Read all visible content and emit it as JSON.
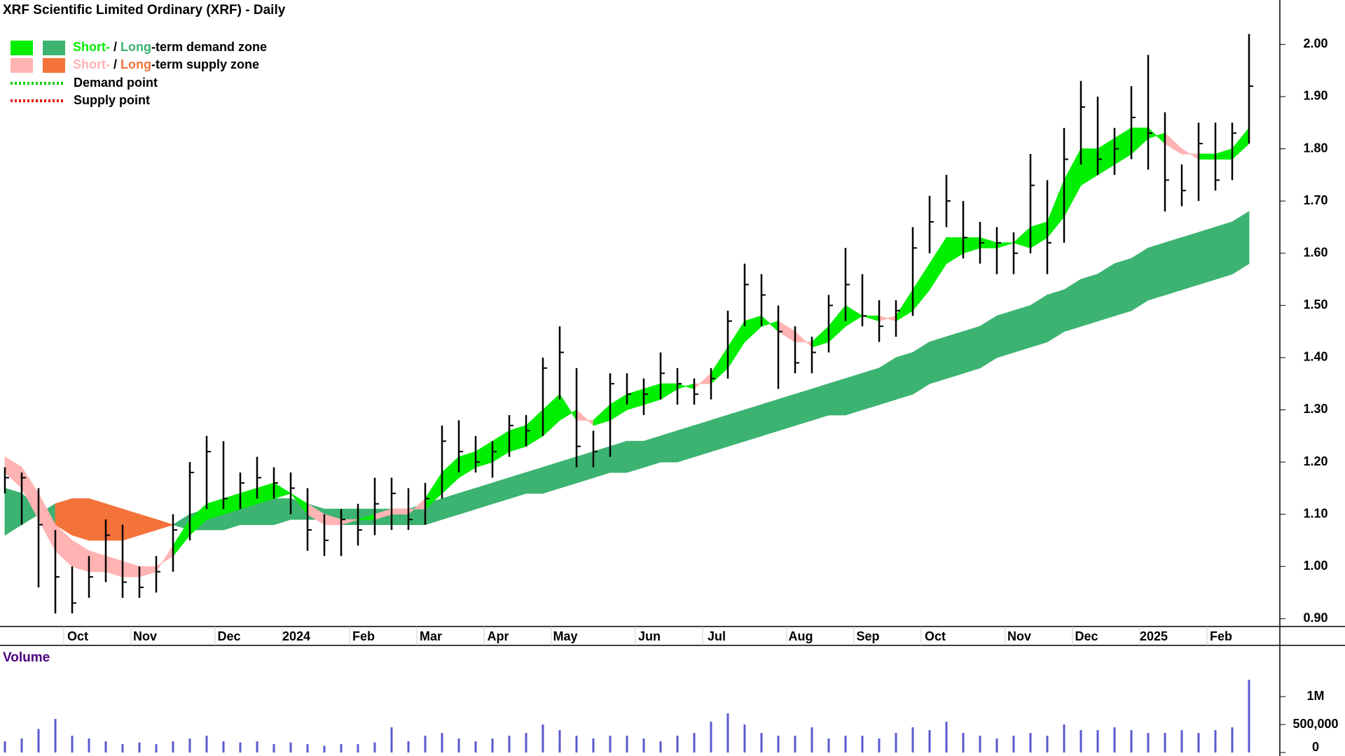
{
  "chart_data": [
    {
      "type": "hlc",
      "title": "XRF Scientific Limited Ordinary (XRF) - Daily",
      "categories": [
        null,
        null,
        null,
        null,
        "Oct",
        null,
        null,
        null,
        "Nov",
        null,
        null,
        null,
        null,
        "Dec",
        null,
        null,
        null,
        "2024",
        null,
        null,
        null,
        "Feb",
        null,
        null,
        null,
        "Mar",
        null,
        null,
        null,
        "Apr",
        null,
        null,
        null,
        "May",
        null,
        null,
        null,
        null,
        "Jun",
        null,
        null,
        null,
        "Jul",
        null,
        null,
        null,
        null,
        "Aug",
        null,
        null,
        null,
        "Sep",
        null,
        null,
        null,
        "Oct",
        null,
        null,
        null,
        null,
        "Nov",
        null,
        null,
        null,
        "Dec",
        null,
        null,
        null,
        "2025",
        null,
        null,
        null,
        "Feb",
        null,
        null
      ],
      "high": [
        1.19,
        1.18,
        1.15,
        1.07,
        1.0,
        1.02,
        1.09,
        1.08,
        1.0,
        1.02,
        1.1,
        1.2,
        1.25,
        1.24,
        1.18,
        1.21,
        1.19,
        1.18,
        1.15,
        1.1,
        1.11,
        1.12,
        1.17,
        1.17,
        1.15,
        1.16,
        1.27,
        1.28,
        1.25,
        1.24,
        1.29,
        1.29,
        1.4,
        1.46,
        1.38,
        1.26,
        1.37,
        1.37,
        1.36,
        1.41,
        1.38,
        1.36,
        1.38,
        1.49,
        1.58,
        1.56,
        1.5,
        1.46,
        1.44,
        1.52,
        1.61,
        1.56,
        1.51,
        1.51,
        1.65,
        1.71,
        1.75,
        1.7,
        1.66,
        1.65,
        1.64,
        1.79,
        1.74,
        1.84,
        1.93,
        1.9,
        1.84,
        1.92,
        1.98,
        1.87,
        1.77,
        1.85,
        1.85,
        1.85,
        2.02
      ],
      "low": [
        1.14,
        1.08,
        0.96,
        0.91,
        0.91,
        0.94,
        0.97,
        0.94,
        0.94,
        0.95,
        0.99,
        1.05,
        1.11,
        1.11,
        1.11,
        1.13,
        1.13,
        1.1,
        1.03,
        1.02,
        1.02,
        1.04,
        1.06,
        1.07,
        1.07,
        1.08,
        1.13,
        1.18,
        1.18,
        1.17,
        1.21,
        1.23,
        1.25,
        1.32,
        1.19,
        1.19,
        1.21,
        1.31,
        1.29,
        1.32,
        1.31,
        1.31,
        1.32,
        1.36,
        1.46,
        1.46,
        1.34,
        1.37,
        1.37,
        1.41,
        1.47,
        1.46,
        1.43,
        1.44,
        1.48,
        1.6,
        1.65,
        1.59,
        1.58,
        1.56,
        1.56,
        1.6,
        1.56,
        1.62,
        1.77,
        1.75,
        1.75,
        1.78,
        1.76,
        1.68,
        1.69,
        1.7,
        1.72,
        1.74,
        1.81
      ],
      "close": [
        1.17,
        1.17,
        1.08,
        0.98,
        0.93,
        0.98,
        1.06,
        0.97,
        0.96,
        0.99,
        1.07,
        1.18,
        1.22,
        1.13,
        1.16,
        1.17,
        1.16,
        1.15,
        1.07,
        1.05,
        1.09,
        1.07,
        1.12,
        1.14,
        1.09,
        1.13,
        1.24,
        1.22,
        1.2,
        1.22,
        1.27,
        1.26,
        1.38,
        1.41,
        1.23,
        1.22,
        1.35,
        1.33,
        1.33,
        1.37,
        1.35,
        1.33,
        1.36,
        1.47,
        1.54,
        1.52,
        1.45,
        1.39,
        1.41,
        1.5,
        1.54,
        1.48,
        1.46,
        1.49,
        1.61,
        1.66,
        1.7,
        1.63,
        1.62,
        1.62,
        1.6,
        1.73,
        1.62,
        1.78,
        1.88,
        1.78,
        1.8,
        1.86,
        1.83,
        1.74,
        1.72,
        1.81,
        1.74,
        1.83,
        1.92
      ],
      "zones": {
        "long_fast": [
          1.15,
          1.14,
          1.11,
          1.08,
          1.06,
          1.05,
          1.05,
          1.05,
          1.06,
          1.07,
          1.08,
          1.1,
          1.11,
          1.11,
          1.12,
          1.12,
          1.13,
          1.13,
          1.12,
          1.11,
          1.11,
          1.11,
          1.11,
          1.11,
          1.11,
          1.12,
          1.13,
          1.14,
          1.15,
          1.16,
          1.17,
          1.18,
          1.19,
          1.2,
          1.21,
          1.22,
          1.23,
          1.24,
          1.24,
          1.25,
          1.26,
          1.27,
          1.28,
          1.29,
          1.3,
          1.31,
          1.32,
          1.33,
          1.34,
          1.35,
          1.36,
          1.37,
          1.38,
          1.4,
          1.41,
          1.43,
          1.44,
          1.45,
          1.46,
          1.48,
          1.49,
          1.5,
          1.52,
          1.53,
          1.55,
          1.56,
          1.58,
          1.59,
          1.61,
          1.62,
          1.63,
          1.64,
          1.65,
          1.66,
          1.68
        ],
        "long_slow": [
          1.06,
          1.08,
          1.1,
          1.12,
          1.13,
          1.13,
          1.12,
          1.11,
          1.1,
          1.09,
          1.08,
          1.07,
          1.07,
          1.07,
          1.08,
          1.08,
          1.08,
          1.09,
          1.09,
          1.09,
          1.08,
          1.08,
          1.08,
          1.08,
          1.08,
          1.08,
          1.09,
          1.1,
          1.11,
          1.12,
          1.13,
          1.14,
          1.14,
          1.15,
          1.16,
          1.17,
          1.18,
          1.18,
          1.19,
          1.2,
          1.2,
          1.21,
          1.22,
          1.23,
          1.24,
          1.25,
          1.26,
          1.27,
          1.28,
          1.29,
          1.29,
          1.3,
          1.31,
          1.32,
          1.33,
          1.35,
          1.36,
          1.37,
          1.38,
          1.4,
          1.41,
          1.42,
          1.43,
          1.45,
          1.46,
          1.47,
          1.48,
          1.49,
          1.51,
          1.52,
          1.53,
          1.54,
          1.55,
          1.56,
          1.58
        ],
        "short_fast": [
          1.18,
          1.15,
          1.09,
          1.03,
          1.0,
          0.99,
          0.99,
          0.98,
          0.98,
          0.99,
          1.04,
          1.09,
          1.12,
          1.13,
          1.14,
          1.15,
          1.16,
          1.14,
          1.1,
          1.08,
          1.08,
          1.09,
          1.09,
          1.1,
          1.1,
          1.13,
          1.18,
          1.21,
          1.22,
          1.24,
          1.26,
          1.27,
          1.3,
          1.33,
          1.28,
          1.28,
          1.31,
          1.33,
          1.34,
          1.35,
          1.35,
          1.34,
          1.37,
          1.42,
          1.47,
          1.48,
          1.45,
          1.43,
          1.43,
          1.46,
          1.5,
          1.48,
          1.47,
          1.48,
          1.53,
          1.58,
          1.63,
          1.63,
          1.63,
          1.62,
          1.62,
          1.65,
          1.66,
          1.74,
          1.8,
          1.8,
          1.82,
          1.84,
          1.84,
          1.81,
          1.79,
          1.79,
          1.79,
          1.8,
          1.84
        ],
        "short_slow": [
          1.21,
          1.19,
          1.14,
          1.08,
          1.05,
          1.03,
          1.02,
          1.01,
          1.0,
          1.0,
          1.02,
          1.06,
          1.09,
          1.1,
          1.11,
          1.12,
          1.13,
          1.14,
          1.12,
          1.1,
          1.09,
          1.09,
          1.1,
          1.11,
          1.11,
          1.11,
          1.14,
          1.17,
          1.19,
          1.2,
          1.22,
          1.23,
          1.25,
          1.28,
          1.3,
          1.27,
          1.28,
          1.3,
          1.31,
          1.32,
          1.34,
          1.35,
          1.35,
          1.38,
          1.43,
          1.46,
          1.47,
          1.45,
          1.42,
          1.43,
          1.46,
          1.48,
          1.48,
          1.47,
          1.49,
          1.53,
          1.58,
          1.6,
          1.61,
          1.61,
          1.62,
          1.61,
          1.63,
          1.67,
          1.73,
          1.75,
          1.77,
          1.79,
          1.82,
          1.83,
          1.8,
          1.78,
          1.78,
          1.78,
          1.81
        ]
      },
      "colors": {
        "short_demand": "#00ee00",
        "long_demand": "#3cb371",
        "short_supply": "#ffb3b3",
        "long_supply": "#f4733a",
        "demand_point": "#00cc00",
        "supply_point": "#e00000",
        "price": "#000000"
      },
      "legend": {
        "demand_zone": {
          "short": "Short-",
          "sep": " / ",
          "long": "Long",
          "rest": "-term demand zone"
        },
        "supply_zone": {
          "short": "Short-",
          "sep": " / ",
          "long": "Long",
          "rest": "-term supply zone"
        },
        "demand_point": "Demand point",
        "supply_point": "Supply point"
      },
      "ylim": [
        0.885,
        2.085
      ],
      "yticks": [
        {
          "value": 0.9,
          "label": "0.90"
        },
        {
          "value": 1.0,
          "label": "1.00"
        },
        {
          "value": 1.1,
          "label": "1.10"
        },
        {
          "value": 1.2,
          "label": "1.20"
        },
        {
          "value": 1.3,
          "label": "1.30"
        },
        {
          "value": 1.4,
          "label": "1.40"
        },
        {
          "value": 1.5,
          "label": "1.50"
        },
        {
          "value": 1.6,
          "label": "1.60"
        },
        {
          "value": 1.7,
          "label": "1.70"
        },
        {
          "value": 1.8,
          "label": "1.80"
        },
        {
          "value": 1.9,
          "label": "1.90"
        },
        {
          "value": 2.0,
          "label": "2.00"
        }
      ]
    },
    {
      "type": "bar",
      "title": "Volume",
      "values": [
        200000,
        250000,
        420000,
        600000,
        300000,
        250000,
        200000,
        150000,
        180000,
        150000,
        200000,
        250000,
        300000,
        200000,
        180000,
        200000,
        150000,
        180000,
        150000,
        120000,
        150000,
        150000,
        180000,
        450000,
        200000,
        300000,
        350000,
        250000,
        200000,
        250000,
        300000,
        350000,
        500000,
        400000,
        300000,
        250000,
        300000,
        300000,
        250000,
        200000,
        300000,
        350000,
        550000,
        700000,
        500000,
        350000,
        300000,
        300000,
        450000,
        250000,
        300000,
        300000,
        250000,
        350000,
        450000,
        400000,
        550000,
        350000,
        300000,
        250000,
        300000,
        350000,
        300000,
        500000,
        400000,
        400000,
        450000,
        400000,
        350000,
        350000,
        400000,
        350000,
        400000,
        450000,
        1300000
      ],
      "color": "#5a5ad0",
      "ylim": [
        0,
        1840000
      ],
      "yticks": [
        0,
        {
          "value": 500000,
          "label": "500,000"
        },
        {
          "value": 1000000,
          "label": "1M"
        }
      ]
    }
  ]
}
